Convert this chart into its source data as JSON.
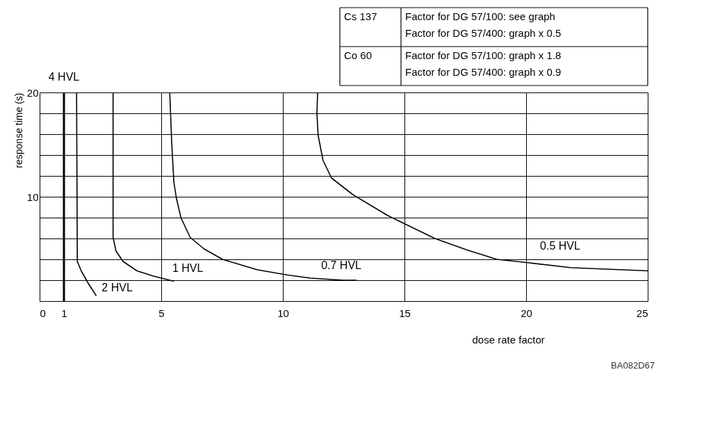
{
  "chart_data": {
    "type": "line",
    "xlabel": "dose rate factor",
    "ylabel": "response time (s)",
    "xlim": [
      0,
      25
    ],
    "xticks": [
      0,
      1,
      5,
      10,
      15,
      20,
      25
    ],
    "ylim": [
      0,
      20
    ],
    "yticks": [
      {
        "value": 0,
        "label": null
      },
      {
        "value": 2,
        "label": null
      },
      {
        "value": 4,
        "label": null
      },
      {
        "value": 6,
        "label": null
      },
      {
        "value": 8,
        "label": null
      },
      10,
      {
        "value": 12,
        "label": null
      },
      {
        "value": 14,
        "label": null
      },
      {
        "value": 16,
        "label": null
      },
      {
        "value": 18,
        "label": null
      },
      20
    ],
    "grid": true,
    "marker": "none",
    "line_style": "solid",
    "series": [
      {
        "name": "4 HVL",
        "color": "#000000",
        "x": [
          1,
          1
        ],
        "values": [
          0,
          20
        ]
      },
      {
        "name": "2 HVL",
        "color": "#000000",
        "x": [
          1.52,
          1.55,
          1.71,
          2.0,
          2.33
        ],
        "values": [
          20,
          3.8,
          2.9,
          1.7,
          0.5
        ]
      },
      {
        "name": "1 HVL",
        "color": "#000000",
        "x": [
          3.02,
          3.02,
          3.14,
          3.43,
          4.0,
          4.67,
          5.52
        ],
        "values": [
          20,
          6.1,
          4.8,
          3.8,
          2.9,
          2.4,
          1.9
        ]
      },
      {
        "name": "0.7 HVL",
        "color": "#000000",
        "x": [
          5.35,
          5.43,
          5.52,
          5.62,
          5.81,
          6.19,
          6.76,
          7.52,
          8.95,
          10.19,
          11.14,
          12.48,
          13.03
        ],
        "values": [
          20,
          15.2,
          11.4,
          9.9,
          8.0,
          6.1,
          5.0,
          4.0,
          3.0,
          2.5,
          2.2,
          2.0,
          2.0
        ]
      },
      {
        "name": "0.5 HVL",
        "color": "#000000",
        "x": [
          11.43,
          11.4,
          11.45,
          11.65,
          12.0,
          12.88,
          14.31,
          16.25,
          17.57,
          18.8,
          20.0,
          21.86,
          25.0
        ],
        "values": [
          20,
          18.0,
          15.9,
          13.5,
          11.8,
          10.2,
          8.2,
          6.0,
          4.9,
          4.0,
          3.7,
          3.2,
          2.9
        ]
      }
    ],
    "annotations": [
      "Cs 137",
      "Factor for DG 57/100: see graph\nFactor for DG 57/400: graph x 0.5",
      "Co 60",
      "Factor for DG 57/100: graph x 1.8\nFactor for DG 57/400: graph x 0.9",
      "BA082D67"
    ]
  }
}
